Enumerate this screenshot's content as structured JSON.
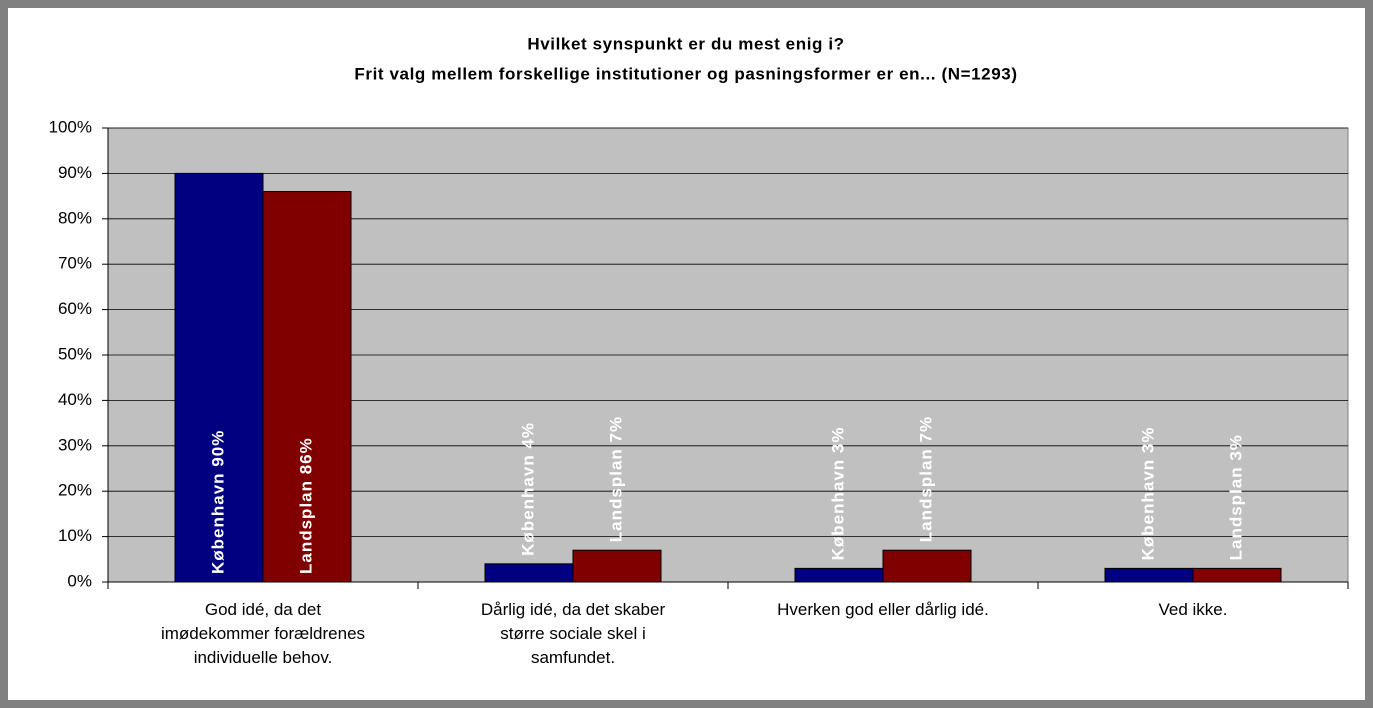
{
  "chart_data": {
    "type": "bar",
    "title": [
      "Hvilket synspunkt er du mest enig i?",
      "Frit valg mellem forskellige institutioner og pasningsformer er en... (N=1293)"
    ],
    "categories": [
      "God idé, da det\nimødekommer forældrenes\nindividuelle behov.",
      "Dårlig idé, da det skaber\nstørre sociale skel i\nsamfundet.",
      "Hverken god eller dårlig idé.",
      "Ved ikke."
    ],
    "series": [
      {
        "color": "#000080",
        "values": [
          90,
          4,
          3,
          3
        ],
        "value_labels": [
          "København 90%",
          "København 4%",
          "København 3%",
          "København 3%"
        ]
      },
      {
        "color": "#800000",
        "values": [
          86,
          7,
          7,
          3
        ],
        "value_labels": [
          "Landsplan 86%",
          "Landsplan 7%",
          "Landsplan 7%",
          "Landsplan 3%"
        ]
      }
    ],
    "ylim": [
      0,
      100
    ],
    "yticks": [
      {
        "value": 0,
        "label": "0%"
      },
      {
        "value": 10,
        "label": "10%"
      },
      {
        "value": 20,
        "label": "20%"
      },
      {
        "value": 30,
        "label": "30%"
      },
      {
        "value": 40,
        "label": "40%"
      },
      {
        "value": 50,
        "label": "50%"
      },
      {
        "value": 60,
        "label": "60%"
      },
      {
        "value": 70,
        "label": "70%"
      },
      {
        "value": 80,
        "label": "80%"
      },
      {
        "value": 90,
        "label": "90%"
      },
      {
        "value": 100,
        "label": "100%"
      }
    ],
    "grid": true
  }
}
